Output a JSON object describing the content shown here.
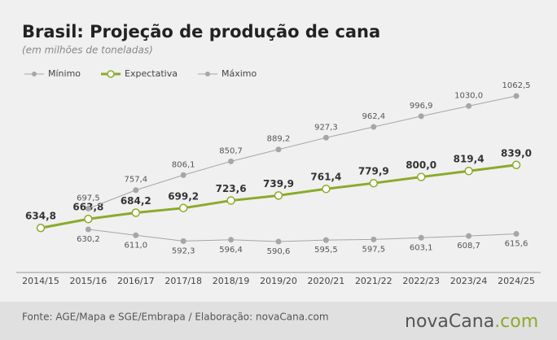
{
  "chart_data": {
    "type": "line",
    "title": "Brasil: Projeção de produção de cana",
    "subtitle": "(em milhões de toneladas)",
    "categories": [
      "2014/15",
      "2015/16",
      "2016/17",
      "2017/18",
      "2018/19",
      "2019/20",
      "2020/21",
      "2021/22",
      "2022/23",
      "2023/24",
      "2024/25"
    ],
    "series": [
      {
        "name": "Mínimo",
        "color": "#a6a6a6",
        "label_side": "below",
        "values": [
          null,
          630.2,
          611.0,
          592.3,
          596.4,
          590.6,
          595.5,
          597.5,
          603.1,
          608.7,
          615.6
        ],
        "value_labels": [
          null,
          "630,2",
          "611,0",
          "592,3",
          "596,4",
          "590,6",
          "595,5",
          "597,5",
          "603,1",
          "608,7",
          "615,6"
        ]
      },
      {
        "name": "Expectativa",
        "color": "#8aab2a",
        "label_side": "above",
        "values": [
          634.8,
          663.8,
          684.2,
          699.2,
          723.6,
          739.9,
          761.4,
          779.9,
          800.0,
          819.4,
          839.0
        ],
        "value_labels": [
          "634,8",
          "663,8",
          "684,2",
          "699,2",
          "723,6",
          "739,9",
          "761,4",
          "779,9",
          "800,0",
          "819,4",
          "839,0"
        ]
      },
      {
        "name": "Máximo",
        "color": "#a6a6a6",
        "label_side": "above",
        "values": [
          null,
          697.5,
          757.4,
          806.1,
          850.7,
          889.2,
          927.3,
          962.4,
          996.9,
          1030.0,
          1062.5
        ],
        "value_labels": [
          null,
          "697,5",
          "757,4",
          "806,1",
          "850,7",
          "889,2",
          "927,3",
          "962,4",
          "996,9",
          "1030,0",
          "1062,5"
        ]
      }
    ]
  },
  "footer": {
    "source": "Fonte: AGE/Mapa e SGE/Embrapa / Elaboração: novaCana.com",
    "logo": [
      "nova",
      "Cana",
      ".com"
    ]
  }
}
